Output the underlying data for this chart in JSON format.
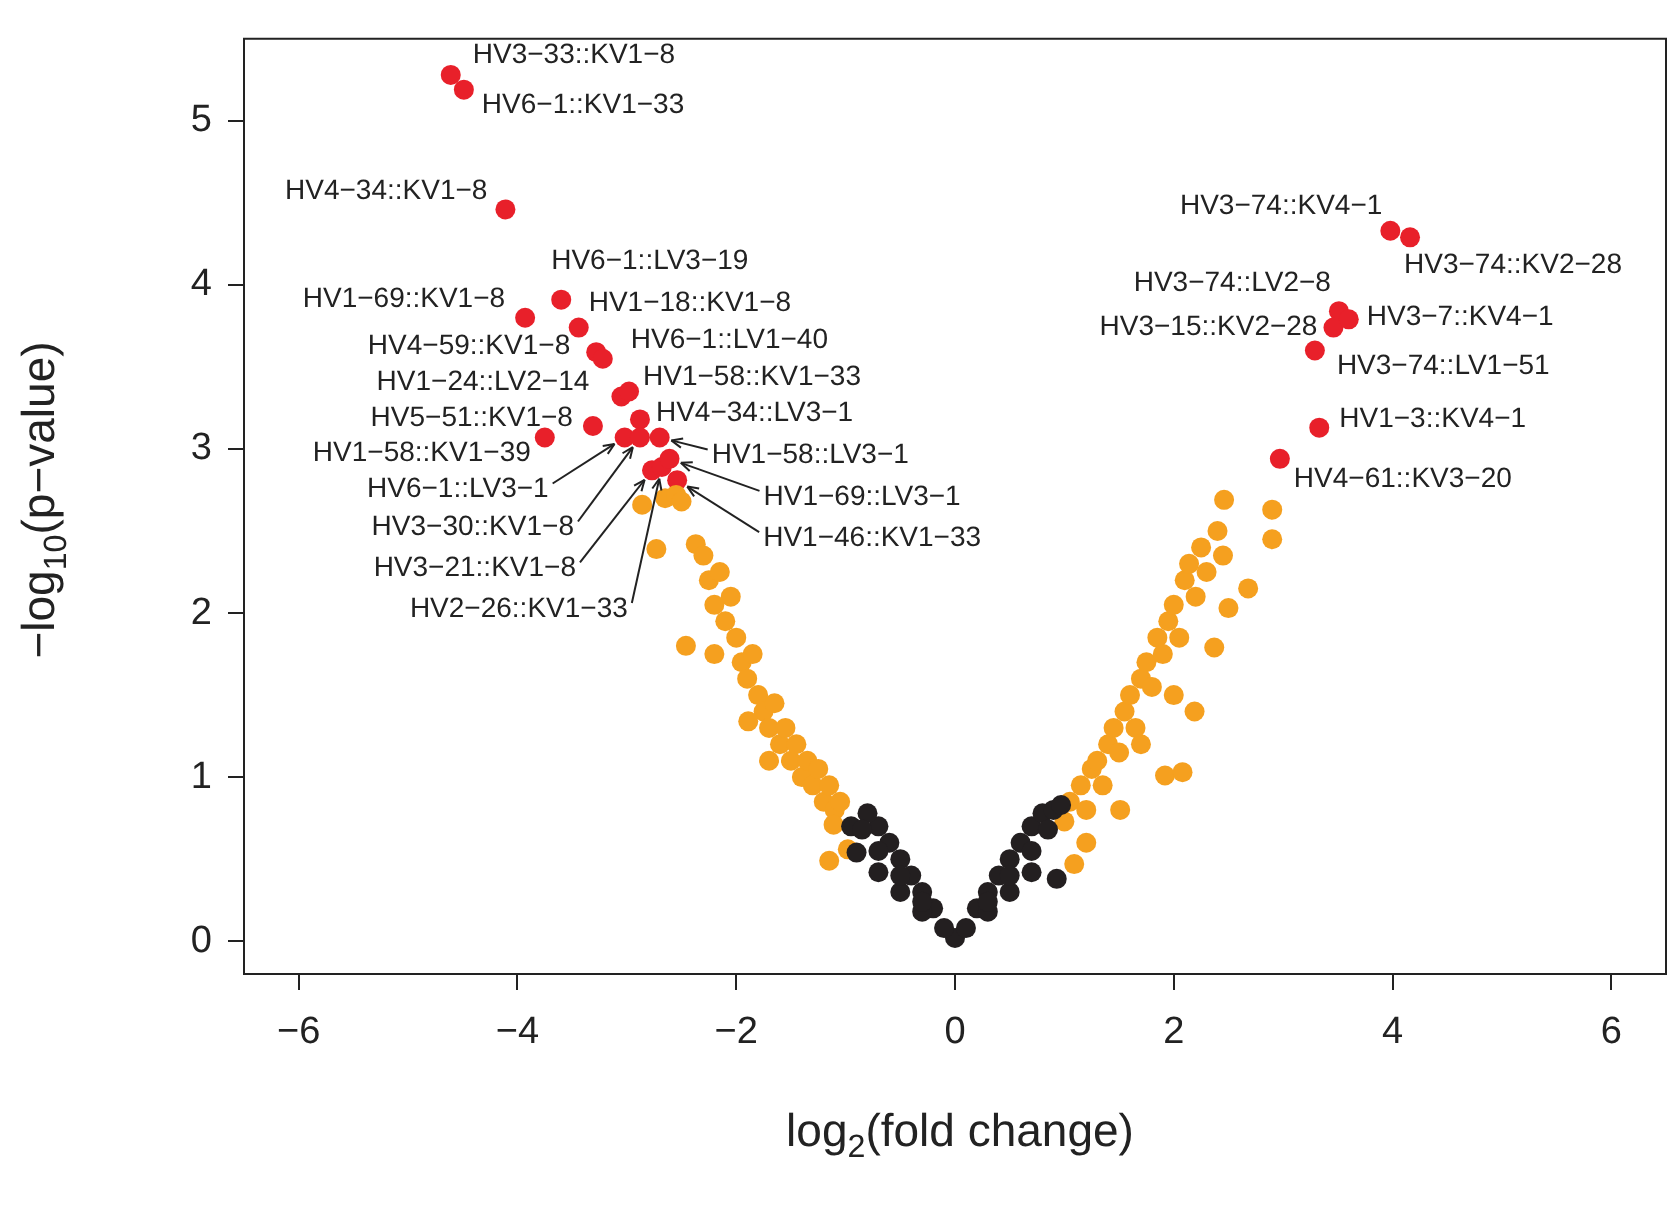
{
  "chart_data": {
    "type": "scatter",
    "xlabel": "log$_{2}$(fold change)",
    "ylabel": "−log$_{10}$(p−value)",
    "xlim": [
      -6.5,
      6.5
    ],
    "ylim": [
      -0.2,
      5.5
    ],
    "xticks": [
      {
        "value": -6,
        "label": "−6"
      },
      {
        "value": -4,
        "label": "−4"
      },
      {
        "value": -2,
        "label": "−2"
      },
      {
        "value": 0,
        "label": "0"
      },
      {
        "value": 2,
        "label": "2"
      },
      {
        "value": 4,
        "label": "4"
      },
      {
        "value": 6,
        "label": "6"
      }
    ],
    "yticks": [
      0,
      1,
      2,
      3,
      4,
      5
    ],
    "grid": false,
    "legend": false,
    "marker": "circle",
    "series": [
      {
        "color": "#231f20",
        "x": [
          0,
          -0.1,
          -0.2,
          -0.3,
          -0.4,
          -0.5,
          -0.6,
          -0.7,
          -0.8,
          -0.9,
          -0.95,
          -0.3,
          -0.5,
          -0.7,
          -0.9,
          -0.3,
          -0.5,
          -0.7,
          -0.85,
          0.1,
          0.2,
          0.3,
          0.4,
          0.5,
          0.6,
          0.7,
          0.8,
          0.9,
          0.97,
          0.3,
          0.5,
          0.7,
          0.93,
          0.3,
          0.5,
          0.7,
          0.85
        ],
        "values": [
          0.02,
          0.08,
          0.2,
          0.3,
          0.4,
          0.5,
          0.6,
          0.7,
          0.78,
          null,
          0.7,
          0.18,
          0.3,
          0.42,
          0.54,
          0.24,
          0.4,
          0.55,
          0.68,
          0.08,
          0.2,
          0.3,
          0.4,
          0.5,
          0.6,
          0.7,
          0.78,
          0.8,
          0.83,
          0.18,
          0.3,
          0.42,
          0.38,
          0.24,
          0.4,
          0.55,
          0.68
        ]
      },
      {
        "color": "#f5a01f",
        "x": [
          -2.86,
          -2.73,
          -2.65,
          -2.55,
          -2.5,
          -2.37,
          -2.3,
          -2.25,
          -2.2,
          -2.15,
          -2.1,
          -2.05,
          -2.46,
          -2.0,
          -1.95,
          -1.9,
          -1.85,
          -1.8,
          -1.75,
          -1.89,
          -1.7,
          -1.65,
          -1.6,
          -1.55,
          -1.5,
          -1.45,
          -1.4,
          -1.35,
          -1.3,
          -1.25,
          -1.2,
          -1.15,
          -1.1,
          -1.05,
          -1.11,
          -1.15,
          -0.98,
          -2.2,
          -1.7,
          1.0,
          1.09,
          1.05,
          1.15,
          1.2,
          1.25,
          1.3,
          1.35,
          1.4,
          1.45,
          1.51,
          1.5,
          1.55,
          1.6,
          1.65,
          1.7,
          1.75,
          1.8,
          1.85,
          1.9,
          1.92,
          1.95,
          2.0,
          2.05,
          2.08,
          2.1,
          2.14,
          2.19,
          2.2,
          2.25,
          2.3,
          2.37,
          2.4,
          2.46,
          2.5,
          2.45,
          2.68,
          2.9,
          2.9,
          1.2,
          2.0,
          1.7
        ],
        "values": [
          2.66,
          2.39,
          2.7,
          2.72,
          2.68,
          2.42,
          2.35,
          2.2,
          2.05,
          2.25,
          1.95,
          2.1,
          1.8,
          1.85,
          1.7,
          1.6,
          1.75,
          1.5,
          1.4,
          1.34,
          1.3,
          1.45,
          1.2,
          1.3,
          1.1,
          1.2,
          1.0,
          1.1,
          0.95,
          1.05,
          0.85,
          0.95,
          0.8,
          0.85,
          0.71,
          0.49,
          0.56,
          1.75,
          1.1,
          0.73,
          0.47,
          0.85,
          0.95,
          0.8,
          1.05,
          1.1,
          0.95,
          1.2,
          1.3,
          0.8,
          1.15,
          1.4,
          1.5,
          1.3,
          1.6,
          1.7,
          1.55,
          1.85,
          1.75,
          1.01,
          1.95,
          2.05,
          1.85,
          1.03,
          2.2,
          2.3,
          1.4,
          2.1,
          2.4,
          2.25,
          1.79,
          2.5,
          2.69,
          2.03,
          2.35,
          2.15,
          2.63,
          2.45,
          0.6,
          1.5,
          1.2
        ]
      },
      {
        "color": "#e8202a",
        "x": [
          -4.61,
          -4.49,
          -4.11,
          -3.6,
          -3.93,
          -3.44,
          -3.28,
          -3.22,
          -3.05,
          -2.98,
          -3.31,
          -2.88,
          -3.75,
          -3.02,
          -2.88,
          -2.7,
          -2.77,
          -2.68,
          -2.61,
          -2.54,
          3.98,
          4.16,
          3.51,
          3.46,
          3.6,
          3.29,
          3.33,
          2.97
        ],
        "values": [
          5.28,
          5.19,
          4.46,
          3.91,
          3.8,
          3.74,
          3.59,
          3.55,
          3.32,
          3.35,
          3.14,
          3.18,
          3.07,
          3.07,
          3.07,
          3.07,
          2.87,
          2.89,
          2.94,
          2.81,
          4.33,
          4.29,
          3.84,
          3.74,
          3.79,
          3.6,
          3.13,
          2.94
        ]
      }
    ],
    "annotations": [
      {
        "text": "HV3−33::KV1−8",
        "x": -4.61,
        "y": 5.28
      },
      {
        "text": "HV6−1::KV1−33",
        "x": -4.49,
        "y": 5.19
      },
      {
        "text": "HV4−34::KV1−8",
        "x": -4.11,
        "y": 4.46
      },
      {
        "text": "HV6−1::LV3−19",
        "x": -3.6,
        "y": 3.91
      },
      {
        "text": "HV1−69::KV1−8",
        "x": -3.93,
        "y": 3.8
      },
      {
        "text": "HV1−18::KV1−8",
        "x": -3.44,
        "y": 3.74
      },
      {
        "text": "HV4−59::KV1−8",
        "x": -3.28,
        "y": 3.59
      },
      {
        "text": "HV6−1::LV1−40",
        "x": -3.22,
        "y": 3.55
      },
      {
        "text": "HV1−24::LV2−14",
        "x": -3.05,
        "y": 3.32
      },
      {
        "text": "HV1−58::KV1−33",
        "x": -2.98,
        "y": 3.35
      },
      {
        "text": "HV5−51::KV1−8",
        "x": -3.31,
        "y": 3.14
      },
      {
        "text": "HV4−34::LV3−1",
        "x": -2.88,
        "y": 3.18
      },
      {
        "text": "HV1−58::KV1−39",
        "x": -3.75,
        "y": 3.07
      },
      {
        "text": "HV6−1::LV3−1",
        "x": -3.02,
        "y": 3.07
      },
      {
        "text": "HV3−30::KV1−8",
        "x": -2.88,
        "y": 3.07
      },
      {
        "text": "HV1−58::LV3−1",
        "x": -2.7,
        "y": 3.07
      },
      {
        "text": "HV3−21::KV1−8",
        "x": -2.77,
        "y": 2.87
      },
      {
        "text": "HV2−26::KV1−33",
        "x": -2.68,
        "y": 2.89
      },
      {
        "text": "HV1−69::LV3−1",
        "x": -2.61,
        "y": 2.94
      },
      {
        "text": "HV1−46::KV1−33",
        "x": -2.54,
        "y": 2.81
      },
      {
        "text": "HV3−74::KV4−1",
        "x": 3.98,
        "y": 4.33
      },
      {
        "text": "HV3−74::KV2−28",
        "x": 4.16,
        "y": 4.29
      },
      {
        "text": "HV3−74::LV2−8",
        "x": 3.51,
        "y": 3.84
      },
      {
        "text": "HV3−15::KV2−28",
        "x": 3.46,
        "y": 3.74
      },
      {
        "text": "HV3−7::KV4−1",
        "x": 3.6,
        "y": 3.79
      },
      {
        "text": "HV3−74::LV1−51",
        "x": 3.29,
        "y": 3.6
      },
      {
        "text": "HV1−3::KV4−1",
        "x": 3.33,
        "y": 3.13
      },
      {
        "text": "HV4−61::KV3−20",
        "x": 2.97,
        "y": 2.94
      }
    ]
  }
}
